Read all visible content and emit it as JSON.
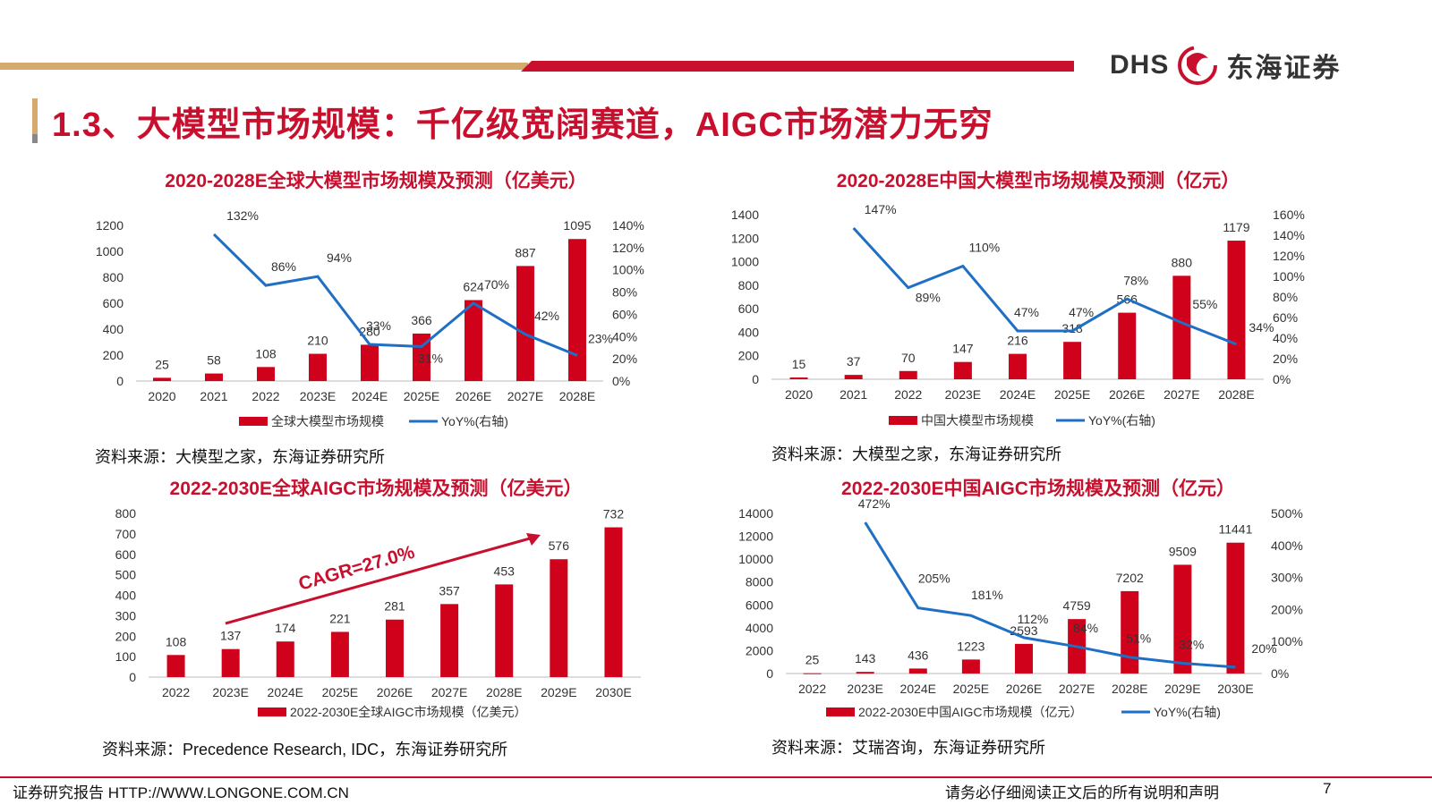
{
  "brand": {
    "name_en": "DHS",
    "name_cn": "东海证券",
    "logo_icon": "dragon-logo-icon"
  },
  "page_title": "1.3、大模型市场规模：千亿级宽阔赛道，AIGC市场潜力无穷",
  "colors": {
    "bar": "#d0021b",
    "line": "#1f6fc4",
    "title": "#c8102e"
  },
  "charts": {
    "c1": {
      "title": "2020-2028E全球大模型市场规模及预测（亿美元）",
      "source": "资料来源：大模型之家，东海证券研究所"
    },
    "c2": {
      "title": "2020-2028E中国大模型市场规模及预测（亿元）",
      "source": "资料来源：大模型之家，东海证券研究所"
    },
    "c3": {
      "title": "2022-2030E全球AIGC市场规模及预测（亿美元）",
      "source": "资料来源：Precedence Research, IDC，东海证券研究所"
    },
    "c4": {
      "title": "2022-2030E中国AIGC市场规模及预测（亿元）",
      "source": "资料来源：艾瑞咨询，东海证券研究所"
    }
  },
  "chart_data": [
    {
      "id": "c1",
      "type": "bar",
      "categories": [
        "2020",
        "2021",
        "2022",
        "2023E",
        "2024E",
        "2025E",
        "2026E",
        "2027E",
        "2028E"
      ],
      "series": [
        {
          "name": "全球大模型市场规模",
          "type": "bar",
          "axis": "left",
          "values": [
            25,
            58,
            108,
            210,
            280,
            366,
            624,
            887,
            1095
          ]
        },
        {
          "name": "YoY%(右轴)",
          "type": "line",
          "axis": "right",
          "values": [
            null,
            132,
            86,
            94,
            33,
            31,
            70,
            42,
            23
          ]
        }
      ],
      "ylim": [
        0,
        1200
      ],
      "yticks": [
        0,
        200,
        400,
        600,
        800,
        1000,
        1200
      ],
      "y2lim": [
        0,
        140
      ],
      "y2ticks": [
        0,
        20,
        40,
        60,
        80,
        100,
        120,
        140
      ],
      "y2suffix": "%",
      "legend": "bottom"
    },
    {
      "id": "c2",
      "type": "bar",
      "categories": [
        "2020",
        "2021",
        "2022",
        "2023E",
        "2024E",
        "2025E",
        "2026E",
        "2027E",
        "2028E"
      ],
      "series": [
        {
          "name": "中国大模型市场规模",
          "type": "bar",
          "axis": "left",
          "values": [
            15,
            37,
            70,
            147,
            216,
            318,
            566,
            880,
            1179
          ]
        },
        {
          "name": "YoY%(右轴)",
          "type": "line",
          "axis": "right",
          "values": [
            null,
            147,
            89,
            110,
            47,
            47,
            78,
            55,
            34
          ]
        }
      ],
      "ylim": [
        0,
        1400
      ],
      "yticks": [
        0,
        200,
        400,
        600,
        800,
        1000,
        1200,
        1400
      ],
      "y2lim": [
        0,
        160
      ],
      "y2ticks": [
        0,
        20,
        40,
        60,
        80,
        100,
        120,
        140,
        160
      ],
      "y2suffix": "%",
      "legend": "bottom"
    },
    {
      "id": "c3",
      "type": "bar",
      "categories": [
        "2022",
        "2023E",
        "2024E",
        "2025E",
        "2026E",
        "2027E",
        "2028E",
        "2029E",
        "2030E"
      ],
      "series": [
        {
          "name": "2022-2030E全球AIGC市场规模（亿美元）",
          "type": "bar",
          "axis": "left",
          "values": [
            108,
            137,
            174,
            221,
            281,
            357,
            453,
            576,
            732
          ]
        }
      ],
      "ylim": [
        0,
        800
      ],
      "yticks": [
        0,
        100,
        200,
        300,
        400,
        500,
        600,
        700,
        800
      ],
      "annotation": "CAGR=27.0%",
      "legend": "bottom"
    },
    {
      "id": "c4",
      "type": "bar",
      "categories": [
        "2022",
        "2023E",
        "2024E",
        "2025E",
        "2026E",
        "2027E",
        "2028E",
        "2029E",
        "2030E"
      ],
      "series": [
        {
          "name": "2022-2030E中国AIGC市场规模（亿元）",
          "type": "bar",
          "axis": "left",
          "values": [
            25,
            143,
            436,
            1223,
            2593,
            4759,
            7202,
            9509,
            11441
          ]
        },
        {
          "name": "YoY%(右轴)",
          "type": "line",
          "axis": "right",
          "values": [
            null,
            472,
            205,
            181,
            112,
            84,
            51,
            32,
            20
          ]
        }
      ],
      "ylim": [
        0,
        14000
      ],
      "yticks": [
        0,
        2000,
        4000,
        6000,
        8000,
        10000,
        12000,
        14000
      ],
      "y2lim": [
        0,
        500
      ],
      "y2ticks": [
        0,
        100,
        200,
        300,
        400,
        500
      ],
      "y2suffix": "%",
      "legend": "bottom"
    }
  ],
  "footer": {
    "left": "证券研究报告 HTTP://WWW.LONGONE.COM.CN",
    "right": "请务必仔细阅读正文后的所有说明和声明",
    "page": "7"
  }
}
